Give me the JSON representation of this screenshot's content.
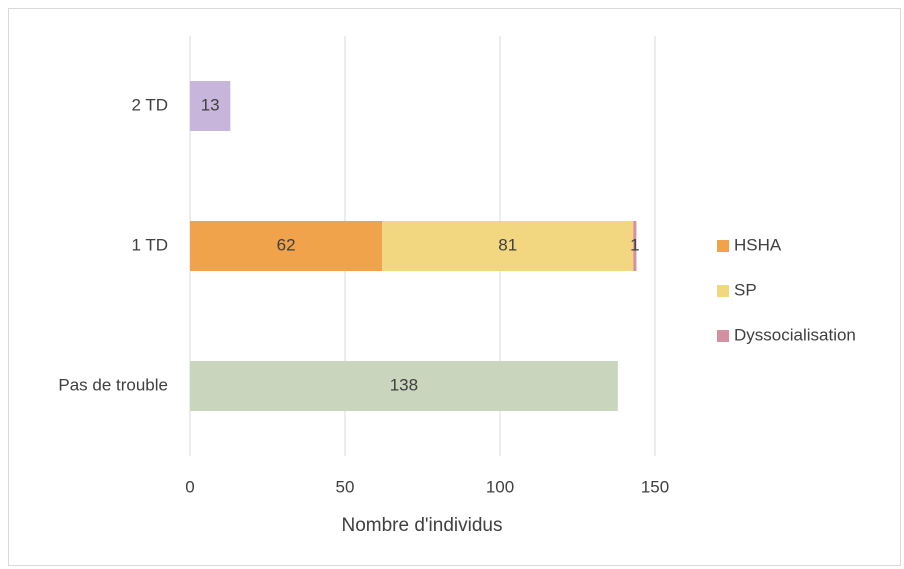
{
  "chart_data": {
    "type": "stacked_barh",
    "categories": [
      "Pas de trouble",
      "1 TD",
      "2 TD"
    ],
    "series": [
      {
        "name": "HSHA",
        "color": "#f0a34a",
        "values": [
          null,
          62,
          null
        ]
      },
      {
        "name": "SP",
        "color": "#f2d680",
        "values": [
          null,
          81,
          null
        ]
      },
      {
        "name": "Dyssocialisation",
        "color": "#d48fa0",
        "values": [
          null,
          1,
          null
        ]
      },
      {
        "color": "#c9d5bd",
        "values": [
          138,
          null,
          null
        ]
      },
      {
        "color": "#c8b5dc",
        "values": [
          null,
          null,
          13
        ]
      }
    ],
    "x_label": "Nombre d'individus",
    "xlim": [
      0,
      150
    ],
    "xticks": [
      0,
      50,
      100,
      150
    ],
    "grid": true,
    "legend": "right",
    "data_labels": true
  }
}
